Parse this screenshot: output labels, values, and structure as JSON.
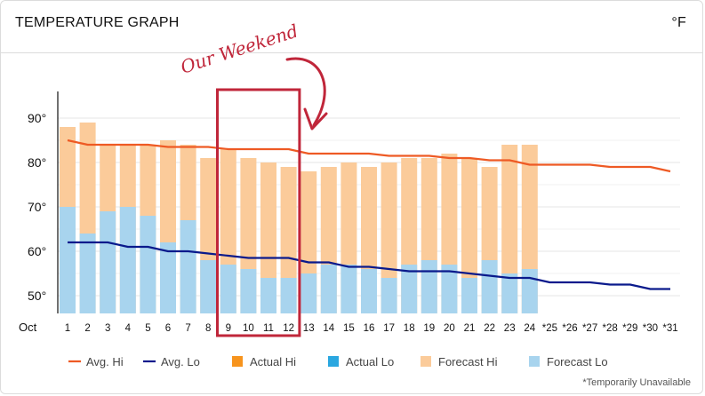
{
  "header": {
    "title": "TEMPERATURE GRAPH",
    "unit": "°F"
  },
  "annotation": {
    "text": "Our Weekend",
    "highlight_days": [
      "9",
      "10",
      "11",
      "12"
    ]
  },
  "footnote": "*Temporarily Unavailable",
  "colors": {
    "avg_hi": "#ee5a24",
    "avg_lo": "#0a1a8c",
    "actual_hi": "#f7941d",
    "actual_lo": "#2aa7e0",
    "forecast_hi": "#fbcb9a",
    "forecast_lo": "#a8d4ee",
    "annotation": "#c0263a"
  },
  "chart_data": {
    "type": "bar",
    "x_prefix": "Oct",
    "categories": [
      "1",
      "2",
      "3",
      "4",
      "5",
      "6",
      "7",
      "8",
      "9",
      "10",
      "11",
      "12",
      "13",
      "14",
      "15",
      "16",
      "17",
      "18",
      "19",
      "20",
      "21",
      "22",
      "23",
      "24",
      "*25",
      "*26",
      "*27",
      "*28",
      "*29",
      "*30",
      "*31"
    ],
    "y_ticks": [
      "90°",
      "80°",
      "70°",
      "60°",
      "50°"
    ],
    "ylim": [
      46,
      96
    ],
    "y_tick_values": [
      90,
      80,
      70,
      60,
      50
    ],
    "series": [
      {
        "name": "Forecast Hi",
        "values": [
          88,
          89,
          84,
          84,
          84,
          85,
          84,
          81,
          83,
          81,
          80,
          79,
          78,
          79,
          80,
          79,
          80,
          81,
          81,
          82,
          81,
          79,
          84,
          84,
          null,
          null,
          null,
          null,
          null,
          null,
          null
        ]
      },
      {
        "name": "Forecast Lo",
        "values": [
          70,
          64,
          69,
          70,
          68,
          62,
          67,
          58,
          57,
          56,
          54,
          54,
          55,
          57,
          57,
          56,
          54,
          57,
          58,
          57,
          54,
          58,
          55,
          56,
          null,
          null,
          null,
          null,
          null,
          null,
          null
        ]
      },
      {
        "name": "Avg. Hi",
        "values": [
          85,
          84,
          84,
          84,
          84,
          83.5,
          83.5,
          83.5,
          83,
          83,
          83,
          83,
          82,
          82,
          82,
          82,
          81.5,
          81.5,
          81.5,
          81,
          81,
          80.5,
          80.5,
          79.5,
          79.5,
          79.5,
          79.5,
          79,
          79,
          79,
          78
        ]
      },
      {
        "name": "Avg. Lo",
        "values": [
          62,
          62,
          62,
          61,
          61,
          60,
          60,
          59.5,
          59,
          58.5,
          58.5,
          58.5,
          57.5,
          57.5,
          56.5,
          56.5,
          56,
          55.5,
          55.5,
          55.5,
          55,
          54.5,
          54,
          54,
          53,
          53,
          53,
          52.5,
          52.5,
          51.5,
          51.5
        ]
      }
    ],
    "legend": [
      {
        "name": "Avg. Hi",
        "kind": "line",
        "color": "#ee5a24"
      },
      {
        "name": "Avg. Lo",
        "kind": "line",
        "color": "#0a1a8c"
      },
      {
        "name": "Actual Hi",
        "kind": "box",
        "color": "#f7941d"
      },
      {
        "name": "Actual Lo",
        "kind": "box",
        "color": "#2aa7e0"
      },
      {
        "name": "Forecast Hi",
        "kind": "box",
        "color": "#fbcb9a"
      },
      {
        "name": "Forecast Lo",
        "kind": "box",
        "color": "#a8d4ee"
      }
    ],
    "legend_position": "bottom",
    "grid": true
  }
}
